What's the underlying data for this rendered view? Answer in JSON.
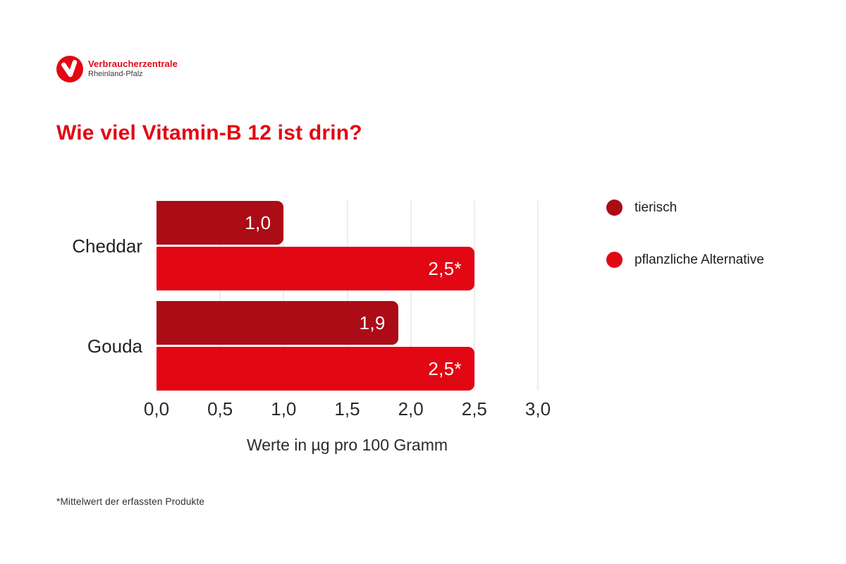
{
  "brand": {
    "name": "Verbraucherzentrale",
    "region": "Rheinland-Pfalz",
    "logo_color": "#e30613"
  },
  "title": "Wie viel Vitamin-B 12 ist drin?",
  "chart_data": {
    "type": "bar",
    "orientation": "horizontal",
    "title": "Wie viel Vitamin-B 12 ist drin?",
    "categories": [
      "Cheddar",
      "Gouda"
    ],
    "series": [
      {
        "name": "tierisch",
        "color": "#ab0c16",
        "values": [
          1.0,
          1.9
        ],
        "labels": [
          "1,0",
          "1,9"
        ]
      },
      {
        "name": "pflanzliche Alternative",
        "color": "#e30613",
        "values": [
          2.5,
          2.5
        ],
        "labels": [
          "2,5*",
          "2,5*"
        ]
      }
    ],
    "xlabel": "Werte in µg pro 100 Gramm",
    "ylabel": "",
    "xlim": [
      0,
      3
    ],
    "xticks": [
      {
        "value": 0.0,
        "label": "0,0"
      },
      {
        "value": 0.5,
        "label": "0,5"
      },
      {
        "value": 1.0,
        "label": "1,0"
      },
      {
        "value": 1.5,
        "label": "1,5"
      },
      {
        "value": 2.0,
        "label": "2,0"
      },
      {
        "value": 2.5,
        "label": "2,5"
      },
      {
        "value": 3.0,
        "label": "3,0"
      }
    ],
    "grid": true,
    "legend_position": "right"
  },
  "legend": {
    "items": [
      {
        "label": "tierisch",
        "color": "#ab0c16"
      },
      {
        "label": "pflanzliche Alternative",
        "color": "#e30613"
      }
    ]
  },
  "footnote": "*Mittelwert der erfassten Produkte",
  "colors": {
    "brand_red": "#e30613",
    "dark_red": "#ab0c16",
    "grid": "#ededed",
    "text": "#2b2b2b",
    "bar_value_text": "#ffffff"
  }
}
